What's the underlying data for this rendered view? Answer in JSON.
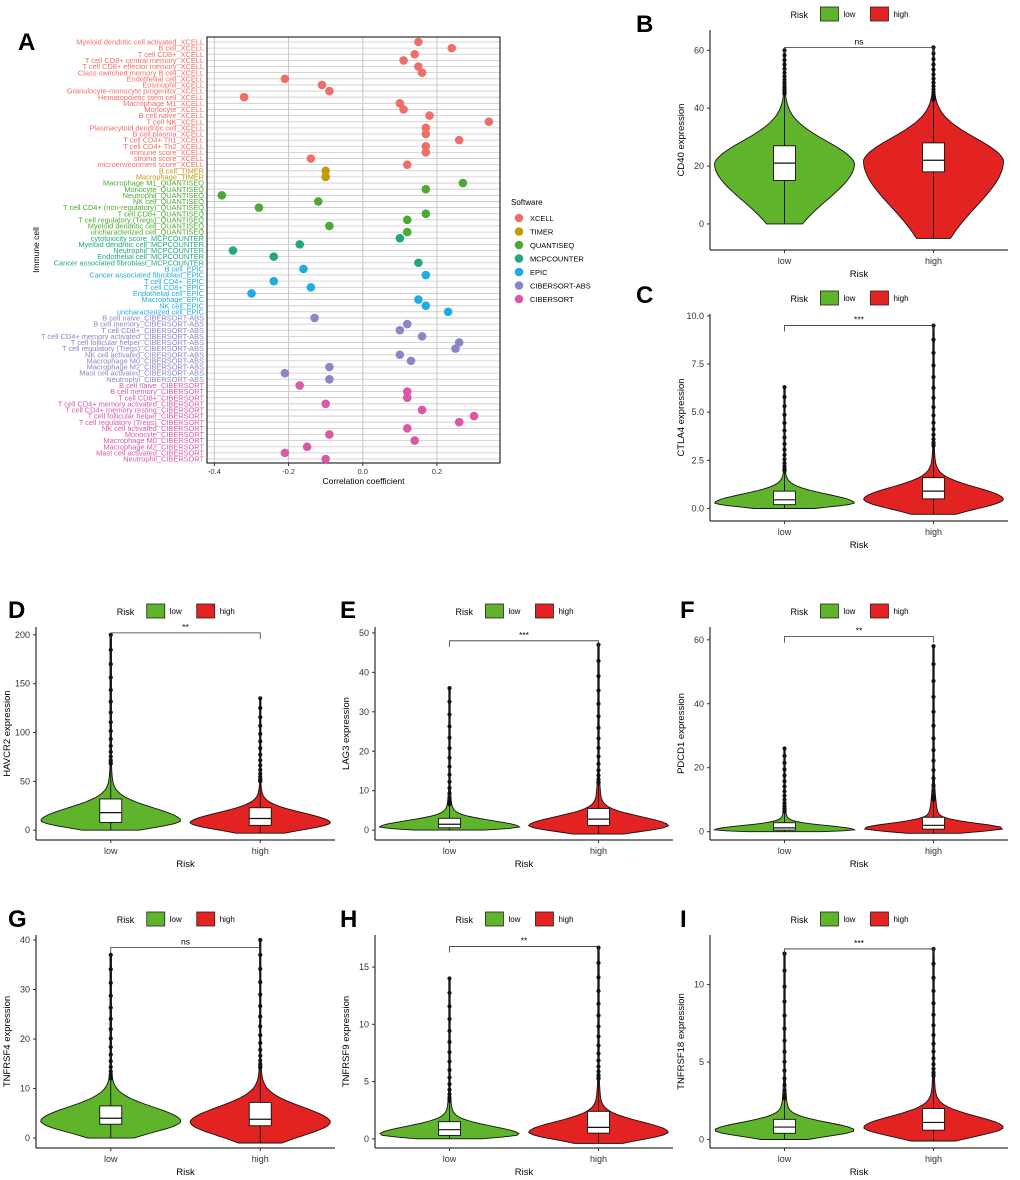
{
  "figure": {
    "panel_letters": [
      "A",
      "B",
      "C",
      "D",
      "E",
      "F",
      "G",
      "H",
      "I"
    ]
  },
  "colors": {
    "low": "#5FB42B",
    "high": "#E32222",
    "panel_border": "#000000",
    "grid": "#C8C8C8",
    "XCELL": "#EE6E68",
    "TIMER": "#C49A0B",
    "QUANTISEQ": "#4DA932",
    "MCPCOUNTER": "#22A77E",
    "EPIC": "#20ACE1",
    "CIBERSORT-ABS": "#8B86C6",
    "CIBERSORT": "#D959A6"
  },
  "chart_data": [
    {
      "type": "scatter",
      "panel": "A",
      "title": "",
      "xlabel": "Correlation coefficient",
      "ylabel": "Immune cell",
      "xlim": [
        -0.42,
        0.37
      ],
      "xticks": [
        -0.4,
        -0.2,
        0.0,
        0.2
      ],
      "xtick_labels": [
        "-0.4",
        "-0.2",
        "0.0",
        "0.2"
      ],
      "legend_title": "Software",
      "legend": [
        "XCELL",
        "TIMER",
        "QUANTISEQ",
        "MCPCOUNTER",
        "EPIC",
        "CIBERSORT-ABS",
        "CIBERSORT"
      ],
      "legend_position": "right",
      "points": [
        {
          "label": "Myeloid dendritic cell activated_XCELL",
          "value": 0.15,
          "software": "XCELL"
        },
        {
          "label": "B cell_XCELL",
          "value": 0.24,
          "software": "XCELL"
        },
        {
          "label": "T cell CD8+_XCELL",
          "value": 0.14,
          "software": "XCELL"
        },
        {
          "label": "T cell CD8+ central memory_XCELL",
          "value": 0.11,
          "software": "XCELL"
        },
        {
          "label": "T cell CD8+ effector memory_XCELL",
          "value": 0.15,
          "software": "XCELL"
        },
        {
          "label": "Class-switched memory B cell_XCELL",
          "value": 0.16,
          "software": "XCELL"
        },
        {
          "label": "Endothelial cell_XCELL",
          "value": -0.21,
          "software": "XCELL"
        },
        {
          "label": "Eosinophil_XCELL",
          "value": -0.11,
          "software": "XCELL"
        },
        {
          "label": "Granulocyte-monocyte progenitor_XCELL",
          "value": -0.09,
          "software": "XCELL"
        },
        {
          "label": "Hematopoietic stem cell_XCELL",
          "value": -0.32,
          "software": "XCELL"
        },
        {
          "label": "Macrophage M1_XCELL",
          "value": 0.1,
          "software": "XCELL"
        },
        {
          "label": "Monocyte_XCELL",
          "value": 0.11,
          "software": "XCELL"
        },
        {
          "label": "B cell naive_XCELL",
          "value": 0.18,
          "software": "XCELL"
        },
        {
          "label": "T cell NK_XCELL",
          "value": 0.34,
          "software": "XCELL"
        },
        {
          "label": "Plasmacytoid dendritic cell_XCELL",
          "value": 0.17,
          "software": "XCELL"
        },
        {
          "label": "B cell plasma_XCELL",
          "value": 0.17,
          "software": "XCELL"
        },
        {
          "label": "T cell CD4+ Th1_XCELL",
          "value": 0.26,
          "software": "XCELL"
        },
        {
          "label": "T cell CD4+ Th2_XCELL",
          "value": 0.17,
          "software": "XCELL"
        },
        {
          "label": "immune score_XCELL",
          "value": 0.17,
          "software": "XCELL"
        },
        {
          "label": "stroma score_XCELL",
          "value": -0.14,
          "software": "XCELL"
        },
        {
          "label": "microenvironment score_XCELL",
          "value": 0.12,
          "software": "XCELL"
        },
        {
          "label": "B cell_TIMER",
          "value": -0.1,
          "software": "TIMER"
        },
        {
          "label": "Macrophage_TIMER",
          "value": -0.1,
          "software": "TIMER"
        },
        {
          "label": "Macrophage M1_QUANTISEQ",
          "value": 0.27,
          "software": "QUANTISEQ"
        },
        {
          "label": "Monocyte_QUANTISEQ",
          "value": 0.17,
          "software": "QUANTISEQ"
        },
        {
          "label": "Neutrophil_QUANTISEQ",
          "value": -0.38,
          "software": "QUANTISEQ"
        },
        {
          "label": "NK cell_QUANTISEQ",
          "value": -0.12,
          "software": "QUANTISEQ"
        },
        {
          "label": "T cell CD4+ (non-regulatory)_QUANTISEQ",
          "value": -0.28,
          "software": "QUANTISEQ"
        },
        {
          "label": "T cell CD8+_QUANTISEQ",
          "value": 0.17,
          "software": "QUANTISEQ"
        },
        {
          "label": "T cell regulatory (Tregs)_QUANTISEQ",
          "value": 0.12,
          "software": "QUANTISEQ"
        },
        {
          "label": "Myeloid dendritic cell_QUANTISEQ",
          "value": -0.09,
          "software": "QUANTISEQ"
        },
        {
          "label": "uncharacterized cell_QUANTISEQ",
          "value": 0.12,
          "software": "QUANTISEQ"
        },
        {
          "label": "cytotoxicity score_MCPCOUNTER",
          "value": 0.1,
          "software": "MCPCOUNTER"
        },
        {
          "label": "Myeloid dendritic cell_MCPCOUNTER",
          "value": -0.17,
          "software": "MCPCOUNTER"
        },
        {
          "label": "Neutrophil_MCPCOUNTER",
          "value": -0.35,
          "software": "MCPCOUNTER"
        },
        {
          "label": "Endothelial cell_MCPCOUNTER",
          "value": -0.24,
          "software": "MCPCOUNTER"
        },
        {
          "label": "Cancer associated fibroblast_MCPCOUNTER",
          "value": 0.15,
          "software": "MCPCOUNTER"
        },
        {
          "label": "B cell_EPIC",
          "value": -0.16,
          "software": "EPIC"
        },
        {
          "label": "Cancer associated fibroblast_EPIC",
          "value": 0.17,
          "software": "EPIC"
        },
        {
          "label": "T cell CD4+_EPIC",
          "value": -0.24,
          "software": "EPIC"
        },
        {
          "label": "T cell CD8+_EPIC",
          "value": -0.14,
          "software": "EPIC"
        },
        {
          "label": "Endothelial cell_EPIC",
          "value": -0.3,
          "software": "EPIC"
        },
        {
          "label": "Macrophage_EPIC",
          "value": 0.15,
          "software": "EPIC"
        },
        {
          "label": "NK cell_EPIC",
          "value": 0.17,
          "software": "EPIC"
        },
        {
          "label": "uncharacterized cell_EPIC",
          "value": 0.23,
          "software": "EPIC"
        },
        {
          "label": "B cell naive_CIBERSORT-ABS",
          "value": -0.13,
          "software": "CIBERSORT-ABS"
        },
        {
          "label": "B cell memory_CIBERSORT-ABS",
          "value": 0.12,
          "software": "CIBERSORT-ABS"
        },
        {
          "label": "T cell CD8+_CIBERSORT-ABS",
          "value": 0.1,
          "software": "CIBERSORT-ABS"
        },
        {
          "label": "T cell CD4+ memory activated_CIBERSORT-ABS",
          "value": 0.16,
          "software": "CIBERSORT-ABS"
        },
        {
          "label": "T cell follicular helper_CIBERSORT-ABS",
          "value": 0.26,
          "software": "CIBERSORT-ABS"
        },
        {
          "label": "T cell regulatory (Tregs)_CIBERSORT-ABS",
          "value": 0.25,
          "software": "CIBERSORT-ABS"
        },
        {
          "label": "NK cell activated_CIBERSORT-ABS",
          "value": 0.1,
          "software": "CIBERSORT-ABS"
        },
        {
          "label": "Macrophage M0_CIBERSORT-ABS",
          "value": 0.13,
          "software": "CIBERSORT-ABS"
        },
        {
          "label": "Macrophage M2_CIBERSORT-ABS",
          "value": -0.09,
          "software": "CIBERSORT-ABS"
        },
        {
          "label": "Mast cell activated_CIBERSORT-ABS",
          "value": -0.21,
          "software": "CIBERSORT-ABS"
        },
        {
          "label": "Neutrophil_CIBERSORT-ABS",
          "value": -0.09,
          "software": "CIBERSORT-ABS"
        },
        {
          "label": "B cell naive_CIBERSORT",
          "value": -0.17,
          "software": "CIBERSORT"
        },
        {
          "label": "B cell memory_CIBERSORT",
          "value": 0.12,
          "software": "CIBERSORT"
        },
        {
          "label": "T cell CD8+_CIBERSORT",
          "value": 0.12,
          "software": "CIBERSORT"
        },
        {
          "label": "T cell CD4+ memory activated_CIBERSORT",
          "value": -0.1,
          "software": "CIBERSORT"
        },
        {
          "label": "T cell CD4+ memory resting_CIBERSORT",
          "value": 0.16,
          "software": "CIBERSORT"
        },
        {
          "label": "T cell follicular helper_CIBERSORT",
          "value": 0.3,
          "software": "CIBERSORT"
        },
        {
          "label": "T cell regulatory (Tregs)_CIBERSORT",
          "value": 0.26,
          "software": "CIBERSORT"
        },
        {
          "label": "NK cell activated_CIBERSORT",
          "value": 0.12,
          "software": "CIBERSORT"
        },
        {
          "label": "Monocyte_CIBERSORT",
          "value": -0.09,
          "software": "CIBERSORT"
        },
        {
          "label": "Macrophage M0_CIBERSORT",
          "value": 0.14,
          "software": "CIBERSORT"
        },
        {
          "label": "Macrophage M2_CIBERSORT",
          "value": -0.15,
          "software": "CIBERSORT"
        },
        {
          "label": "Mast cell activated_CIBERSORT",
          "value": -0.21,
          "software": "CIBERSORT"
        },
        {
          "label": "Neutrophil_CIBERSORT",
          "value": -0.1,
          "software": "CIBERSORT"
        }
      ]
    },
    {
      "type": "violin",
      "panel": "B",
      "ylabel": "CD40 expression",
      "xlabel": "Risk",
      "categories": [
        "low",
        "high"
      ],
      "legend_title": "Risk",
      "legend": [
        "low",
        "high"
      ],
      "ylim": [
        -9,
        67
      ],
      "yticks": [
        0,
        20,
        40,
        60
      ],
      "yticklabels": [
        "0",
        "20",
        "40",
        "60"
      ],
      "signif": "ns",
      "bracket_y": 61,
      "groups": [
        {
          "name": "low",
          "min": 0,
          "q1": 15,
          "median": 21,
          "q3": 27,
          "max": 60,
          "peak": 21,
          "spread": 8
        },
        {
          "name": "high",
          "min": -5,
          "q1": 18,
          "median": 22,
          "q3": 28,
          "max": 61,
          "peak": 22,
          "spread": 8
        }
      ]
    },
    {
      "type": "violin",
      "panel": "C",
      "ylabel": "CTLA4 expression",
      "xlabel": "Risk",
      "categories": [
        "low",
        "high"
      ],
      "legend_title": "Risk",
      "legend": [
        "low",
        "high"
      ],
      "ylim": [
        -0.65,
        10.1
      ],
      "yticks": [
        0,
        2.5,
        5,
        7.5,
        10
      ],
      "yticklabels": [
        "0.0",
        "2.5",
        "5.0",
        "7.5",
        "10.0"
      ],
      "signif": "***",
      "bracket_y": 9.5,
      "groups": [
        {
          "name": "low",
          "min": 0.0,
          "q1": 0.2,
          "median": 0.45,
          "q3": 0.9,
          "max": 6.3,
          "peak": 0.3,
          "spread": 0.45
        },
        {
          "name": "high",
          "min": -0.3,
          "q1": 0.5,
          "median": 0.9,
          "q3": 1.6,
          "max": 9.5,
          "peak": 0.5,
          "spread": 0.6
        }
      ]
    },
    {
      "type": "violin",
      "panel": "D",
      "ylabel": "HAVCR2 expression",
      "xlabel": "Risk",
      "categories": [
        "low",
        "high"
      ],
      "legend_title": "Risk",
      "legend": [
        "low",
        "high"
      ],
      "ylim": [
        -10,
        208
      ],
      "yticks": [
        0,
        50,
        100,
        150,
        200
      ],
      "yticklabels": [
        "0",
        "50",
        "100",
        "150",
        "200"
      ],
      "signif": "**",
      "bracket_y": 202,
      "groups": [
        {
          "name": "low",
          "min": 0,
          "q1": 8,
          "median": 18,
          "q3": 32,
          "max": 200,
          "peak": 10,
          "spread": 13
        },
        {
          "name": "high",
          "min": -3,
          "q1": 5,
          "median": 12,
          "q3": 23,
          "max": 135,
          "peak": 8,
          "spread": 10
        }
      ]
    },
    {
      "type": "violin",
      "panel": "E",
      "ylabel": "LAG3 expression",
      "xlabel": "Risk",
      "categories": [
        "low",
        "high"
      ],
      "legend_title": "Risk",
      "legend": [
        "low",
        "high"
      ],
      "ylim": [
        -2.5,
        51.5
      ],
      "yticks": [
        0,
        10,
        20,
        30,
        40,
        50
      ],
      "yticklabels": [
        "0",
        "10",
        "20",
        "30",
        "40",
        "50"
      ],
      "signif": "***",
      "bracket_y": 48,
      "groups": [
        {
          "name": "low",
          "min": 0,
          "q1": 0.6,
          "median": 1.5,
          "q3": 3,
          "max": 36,
          "peak": 0.8,
          "spread": 1.6
        },
        {
          "name": "high",
          "min": -1,
          "q1": 1.2,
          "median": 2.8,
          "q3": 5.5,
          "max": 47,
          "peak": 1.2,
          "spread": 2.2
        }
      ]
    },
    {
      "type": "violin",
      "panel": "F",
      "ylabel": "PDCD1 expression",
      "xlabel": "Risk",
      "categories": [
        "low",
        "high"
      ],
      "legend_title": "Risk",
      "legend": [
        "low",
        "high"
      ],
      "ylim": [
        -2.6,
        64
      ],
      "yticks": [
        0,
        20,
        40,
        60
      ],
      "yticklabels": [
        "0",
        "20",
        "40",
        "60"
      ],
      "signif": "**",
      "bracket_y": 61,
      "groups": [
        {
          "name": "low",
          "min": 0,
          "q1": 0.5,
          "median": 1.2,
          "q3": 2.8,
          "max": 26,
          "peak": 0.6,
          "spread": 1.3
        },
        {
          "name": "high",
          "min": -0.5,
          "q1": 0.8,
          "median": 2,
          "q3": 4.5,
          "max": 58,
          "peak": 1,
          "spread": 1.6
        }
      ]
    },
    {
      "type": "violin",
      "panel": "G",
      "ylabel": "TNFRSF4 expression",
      "xlabel": "Risk",
      "categories": [
        "low",
        "high"
      ],
      "legend_title": "Risk",
      "legend": [
        "low",
        "high"
      ],
      "ylim": [
        -2,
        41
      ],
      "yticks": [
        0,
        10,
        20,
        30,
        40
      ],
      "yticklabels": [
        "0",
        "10",
        "20",
        "30",
        "40"
      ],
      "signif": "ns",
      "bracket_y": 38.5,
      "groups": [
        {
          "name": "low",
          "min": 0,
          "q1": 2.8,
          "median": 4,
          "q3": 6.5,
          "max": 37,
          "peak": 3.5,
          "spread": 2.8
        },
        {
          "name": "high",
          "min": -1,
          "q1": 2.5,
          "median": 3.8,
          "q3": 7.2,
          "max": 40,
          "peak": 3.3,
          "spread": 3.0
        }
      ]
    },
    {
      "type": "violin",
      "panel": "H",
      "ylabel": "TNFRSF9 expression",
      "xlabel": "Risk",
      "categories": [
        "low",
        "high"
      ],
      "legend_title": "Risk",
      "legend": [
        "low",
        "high"
      ],
      "ylim": [
        -0.8,
        17.8
      ],
      "yticks": [
        0,
        5,
        10,
        15
      ],
      "yticklabels": [
        "0",
        "5",
        "10",
        "15"
      ],
      "signif": "**",
      "bracket_y": 16.8,
      "groups": [
        {
          "name": "low",
          "min": 0,
          "q1": 0.3,
          "median": 0.8,
          "q3": 1.5,
          "max": 14,
          "peak": 0.4,
          "spread": 0.7
        },
        {
          "name": "high",
          "min": -0.4,
          "q1": 0.5,
          "median": 1.0,
          "q3": 2.4,
          "max": 16.7,
          "peak": 0.6,
          "spread": 0.9
        }
      ]
    },
    {
      "type": "violin",
      "panel": "I",
      "ylabel": "TNFRSF18 expression",
      "xlabel": "Risk",
      "categories": [
        "low",
        "high"
      ],
      "legend_title": "Risk",
      "legend": [
        "low",
        "high"
      ],
      "ylim": [
        -0.55,
        13.2
      ],
      "yticks": [
        0,
        5,
        10
      ],
      "yticklabels": [
        "0",
        "5",
        "10"
      ],
      "signif": "***",
      "bracket_y": 12.3,
      "groups": [
        {
          "name": "low",
          "min": 0,
          "q1": 0.4,
          "median": 0.8,
          "q3": 1.3,
          "max": 12,
          "peak": 0.6,
          "spread": 0.5
        },
        {
          "name": "high",
          "min": -0.1,
          "q1": 0.6,
          "median": 1.1,
          "q3": 2.0,
          "max": 12.3,
          "peak": 0.8,
          "spread": 0.7
        }
      ]
    }
  ]
}
